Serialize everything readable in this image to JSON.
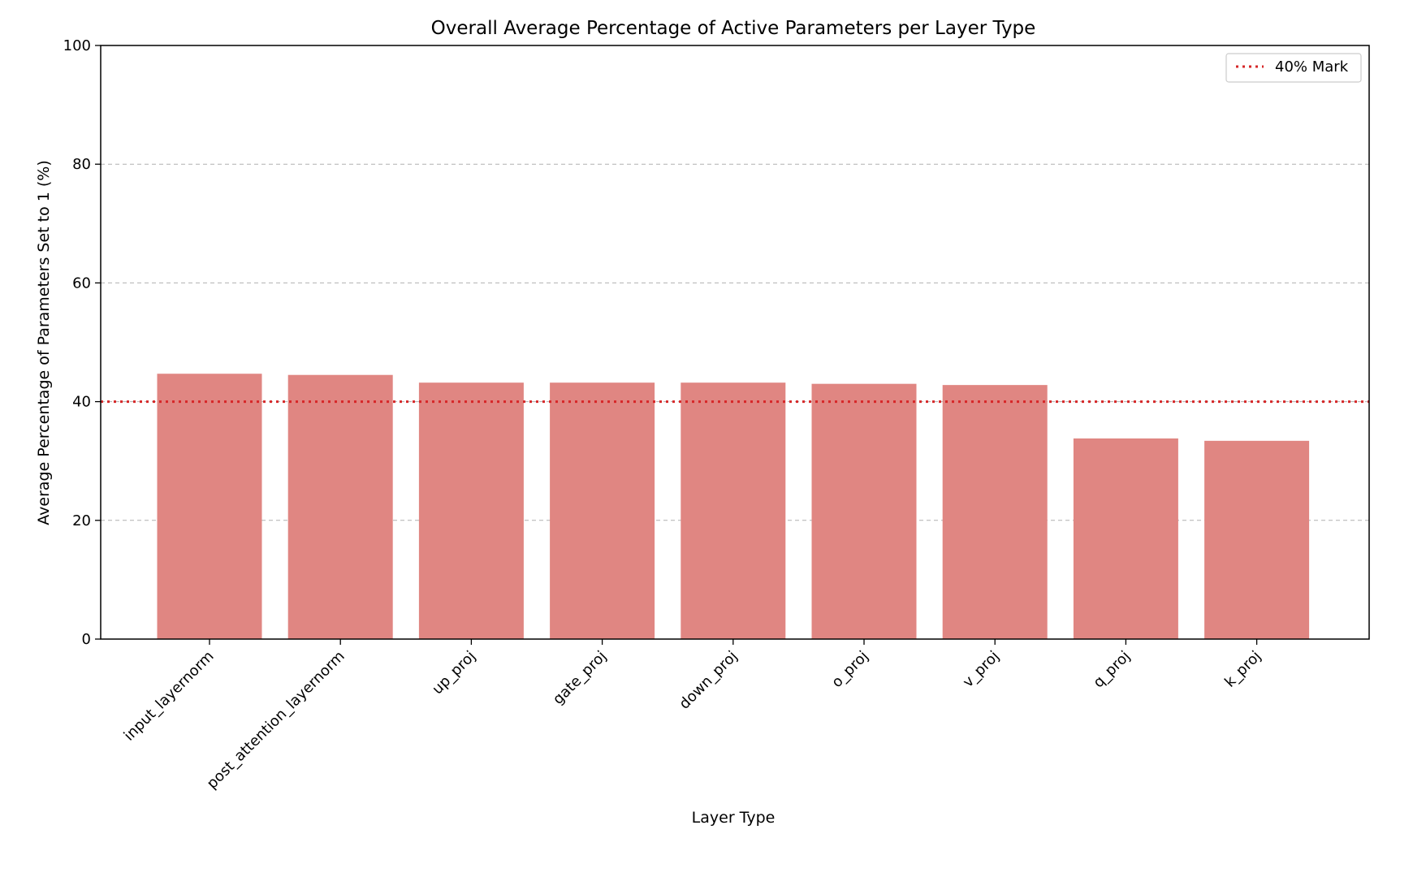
{
  "chart_data": {
    "type": "bar",
    "title": "Overall Average Percentage of Active Parameters per Layer Type",
    "xlabel": "Layer Type",
    "ylabel": "Average Percentage of Parameters Set to 1 (%)",
    "categories": [
      "input_layernorm",
      "post_attention_layernorm",
      "up_proj",
      "gate_proj",
      "down_proj",
      "o_proj",
      "v_proj",
      "q_proj",
      "k_proj"
    ],
    "values": [
      44.7,
      44.5,
      43.2,
      43.2,
      43.2,
      43.0,
      42.8,
      33.8,
      33.4
    ],
    "ylim": [
      0,
      100
    ],
    "yticks": [
      0,
      20,
      40,
      60,
      80,
      100
    ],
    "grid": "y-dashed",
    "bar_color": "#e08682",
    "reference_line": {
      "value": 40,
      "label": "40% Mark",
      "color": "#d62728",
      "style": "dotted"
    },
    "legend": {
      "position": "top-right",
      "entries": [
        "40% Mark"
      ]
    }
  }
}
